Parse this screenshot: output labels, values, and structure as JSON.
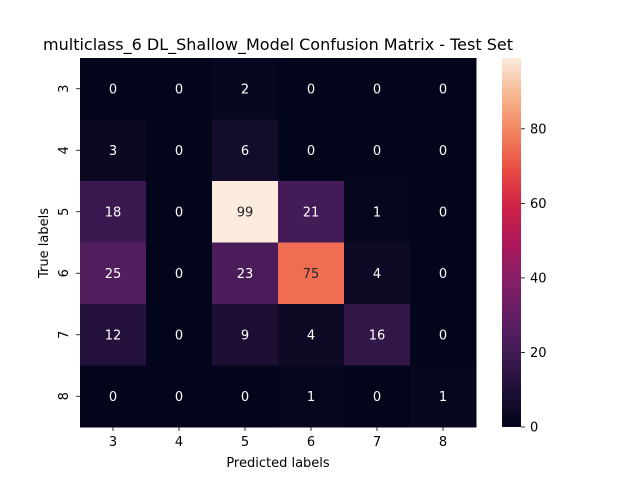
{
  "chart_data": {
    "type": "heatmap",
    "title": "multiclass_6 DL_Shallow_Model Confusion Matrix - Test Set",
    "xlabel": "Predicted labels",
    "ylabel": "True labels",
    "x_categories": [
      "3",
      "4",
      "5",
      "6",
      "7",
      "8"
    ],
    "y_categories": [
      "3",
      "4",
      "5",
      "6",
      "7",
      "8"
    ],
    "matrix": [
      [
        0,
        0,
        2,
        0,
        0,
        0
      ],
      [
        3,
        0,
        6,
        0,
        0,
        0
      ],
      [
        18,
        0,
        99,
        21,
        1,
        0
      ],
      [
        25,
        0,
        23,
        75,
        4,
        0
      ],
      [
        12,
        0,
        9,
        4,
        16,
        0
      ],
      [
        0,
        0,
        0,
        1,
        0,
        1
      ]
    ],
    "colormap": "rocket",
    "vmin": 0,
    "vmax": 99,
    "colorbar_ticks": [
      0,
      20,
      40,
      60,
      80
    ],
    "colorbar_tick_labels": [
      "0",
      "20",
      "40",
      "60",
      "80"
    ]
  }
}
